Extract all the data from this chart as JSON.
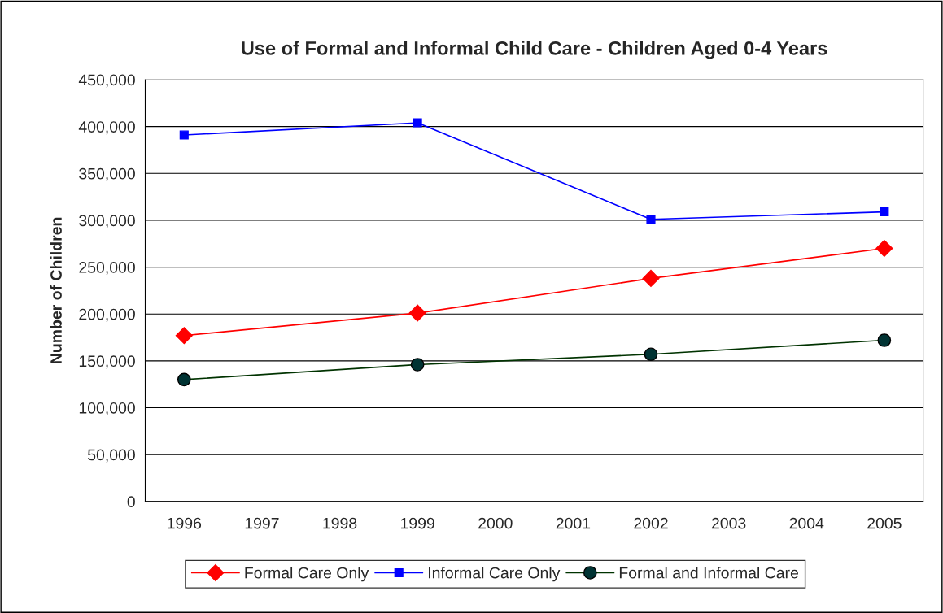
{
  "chart_data": {
    "type": "line",
    "title": "Use of Formal and Informal Child Care - Children Aged 0-4 Years",
    "ylabel": "Number of Children",
    "categories": [
      "1996",
      "1997",
      "1998",
      "1999",
      "2000",
      "2001",
      "2002",
      "2003",
      "2004",
      "2005"
    ],
    "series": [
      {
        "name": "Formal Care Only",
        "color": "#ff0000",
        "marker": "diamond",
        "values": [
          177000,
          null,
          null,
          201000,
          null,
          null,
          238000,
          null,
          null,
          270000
        ]
      },
      {
        "name": "Informal Care Only",
        "color": "#0000ff",
        "marker": "square",
        "values": [
          391000,
          null,
          null,
          404000,
          null,
          null,
          301000,
          null,
          null,
          309000
        ]
      },
      {
        "name": "Formal and Informal Care",
        "color": "#003300",
        "marker": "circle",
        "values": [
          130000,
          null,
          null,
          146000,
          null,
          null,
          157000,
          null,
          null,
          172000
        ]
      }
    ],
    "ylim": [
      0,
      450000
    ],
    "yticks": [
      {
        "value": 0,
        "label": "0"
      },
      {
        "value": 50000,
        "label": "50,000"
      },
      {
        "value": 100000,
        "label": "100,000"
      },
      {
        "value": 150000,
        "label": "150,000"
      },
      {
        "value": 200000,
        "label": "200,000"
      },
      {
        "value": 250000,
        "label": "250,000"
      },
      {
        "value": 300000,
        "label": "300,000"
      },
      {
        "value": 350000,
        "label": "350,000"
      },
      {
        "value": 400000,
        "label": "400,000"
      },
      {
        "value": 450000,
        "label": "450,000"
      }
    ],
    "grid": "y",
    "legend": "bottom",
    "line_style": "solid"
  }
}
